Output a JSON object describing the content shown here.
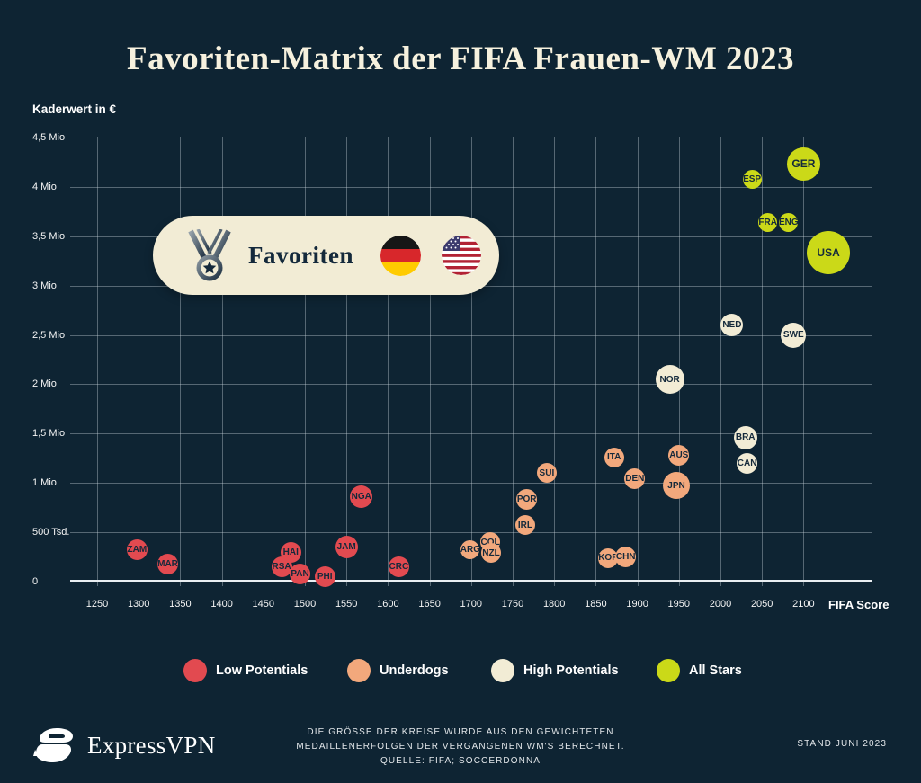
{
  "title": "Favoriten-Matrix der FIFA Frauen-WM 2023",
  "y_axis_title": "Kaderwert in €",
  "x_axis_title": "FIFA Score",
  "callout": {
    "label": "Favoriten",
    "icon": "medal-icon",
    "flags": [
      "germany-flag",
      "usa-flag"
    ]
  },
  "legend": [
    {
      "label": "Low Potentials",
      "color": "#e24a50"
    },
    {
      "label": "Underdogs",
      "color": "#f2a87c"
    },
    {
      "label": "High Potentials",
      "color": "#f2ecd5"
    },
    {
      "label": "All Stars",
      "color": "#cbd918"
    }
  ],
  "footer": {
    "brand": "ExpressVPN",
    "note_line1": "DIE GRÖSSE DER KREISE WURDE AUS DEN GEWICHTETEN",
    "note_line2": "MEDAILLENERFOLGEN DER VERGANGENEN WM'S BERECHNET.",
    "note_line3": "QUELLE: FIFA; SOCCERDONNA",
    "stand": "STAND JUNI 2023"
  },
  "colors": {
    "background": "#0e2433",
    "title": "#f6f1de",
    "grid": "rgba(205,216,224,0.38)",
    "bubble_text": "#14293b",
    "low": "#e24a50",
    "underdog": "#f2a87c",
    "high": "#f2ecd5",
    "allstar": "#cbd918"
  },
  "chart_data": {
    "type": "bubble",
    "title": "Favoriten-Matrix der FIFA Frauen-WM 2023",
    "xlabel": "FIFA Score",
    "ylabel": "Kaderwert in €",
    "xlim": [
      1250,
      2100
    ],
    "x_ticks": [
      1250,
      1300,
      1350,
      1400,
      1450,
      1500,
      1550,
      1600,
      1650,
      1700,
      1750,
      1800,
      1850,
      1900,
      1950,
      2000,
      2050,
      2100
    ],
    "ylim_mio": [
      0,
      4.5
    ],
    "y_ticks": [
      {
        "v": 0,
        "label": "0"
      },
      {
        "v": 0.5,
        "label": "500 Tsd."
      },
      {
        "v": 1,
        "label": "1 Mio"
      },
      {
        "v": 1.5,
        "label": "1,5 Mio"
      },
      {
        "v": 2,
        "label": "2 Mio"
      },
      {
        "v": 2.5,
        "label": "2,5 Mio"
      },
      {
        "v": 3,
        "label": "3 Mio"
      },
      {
        "v": 3.5,
        "label": "3,5 Mio"
      },
      {
        "v": 4,
        "label": "4 Mio"
      },
      {
        "v": 4.5,
        "label": "4,5 Mio"
      }
    ],
    "categories": [
      {
        "id": "low",
        "label": "Low Potentials",
        "color": "#e24a50"
      },
      {
        "id": "underdog",
        "label": "Underdogs",
        "color": "#f2a87c"
      },
      {
        "id": "high",
        "label": "High Potentials",
        "color": "#f2ecd5"
      },
      {
        "id": "allstar",
        "label": "All Stars",
        "color": "#cbd918"
      }
    ],
    "points": [
      {
        "team": "ZAM",
        "fifa_score": 1298,
        "kaderwert_mio": 0.32,
        "r": 11.5,
        "category": "low"
      },
      {
        "team": "MAR",
        "fifa_score": 1335,
        "kaderwert_mio": 0.18,
        "r": 11.5,
        "category": "low"
      },
      {
        "team": "HAI",
        "fifa_score": 1483,
        "kaderwert_mio": 0.3,
        "r": 11.5,
        "category": "low"
      },
      {
        "team": "RSA",
        "fifa_score": 1472,
        "kaderwert_mio": 0.15,
        "r": 11.5,
        "category": "low"
      },
      {
        "team": "PAN",
        "fifa_score": 1494,
        "kaderwert_mio": 0.08,
        "r": 11.5,
        "category": "low"
      },
      {
        "team": "PHI",
        "fifa_score": 1524,
        "kaderwert_mio": 0.055,
        "r": 11.5,
        "category": "low"
      },
      {
        "team": "JAM",
        "fifa_score": 1550,
        "kaderwert_mio": 0.355,
        "r": 12.5,
        "category": "low"
      },
      {
        "team": "NGA",
        "fifa_score": 1568,
        "kaderwert_mio": 0.865,
        "r": 12.5,
        "category": "low"
      },
      {
        "team": "CRC",
        "fifa_score": 1613,
        "kaderwert_mio": 0.155,
        "r": 11.5,
        "category": "low"
      },
      {
        "team": "ARG",
        "fifa_score": 1699,
        "kaderwert_mio": 0.32,
        "r": 10.5,
        "category": "underdog"
      },
      {
        "team": "COL",
        "fifa_score": 1723,
        "kaderwert_mio": 0.4,
        "r": 11,
        "category": "underdog"
      },
      {
        "team": "NZL",
        "fifa_score": 1724,
        "kaderwert_mio": 0.29,
        "r": 11,
        "category": "underdog"
      },
      {
        "team": "IRL",
        "fifa_score": 1765,
        "kaderwert_mio": 0.57,
        "r": 11,
        "category": "underdog"
      },
      {
        "team": "POR",
        "fifa_score": 1767,
        "kaderwert_mio": 0.83,
        "r": 11.5,
        "category": "underdog"
      },
      {
        "team": "SUI",
        "fifa_score": 1791,
        "kaderwert_mio": 1.1,
        "r": 11,
        "category": "underdog"
      },
      {
        "team": "KOR",
        "fifa_score": 1865,
        "kaderwert_mio": 0.24,
        "r": 11,
        "category": "underdog"
      },
      {
        "team": "CHN",
        "fifa_score": 1886,
        "kaderwert_mio": 0.255,
        "r": 11.5,
        "category": "underdog"
      },
      {
        "team": "ITA",
        "fifa_score": 1872,
        "kaderwert_mio": 1.26,
        "r": 11,
        "category": "underdog"
      },
      {
        "team": "DEN",
        "fifa_score": 1897,
        "kaderwert_mio": 1.04,
        "r": 11.5,
        "category": "underdog"
      },
      {
        "team": "AUS",
        "fifa_score": 1950,
        "kaderwert_mio": 1.28,
        "r": 11.5,
        "category": "underdog"
      },
      {
        "team": "JPN",
        "fifa_score": 1947,
        "kaderwert_mio": 0.975,
        "r": 15,
        "category": "underdog"
      },
      {
        "team": "NOR",
        "fifa_score": 1939,
        "kaderwert_mio": 2.05,
        "r": 16,
        "category": "high"
      },
      {
        "team": "BRA",
        "fifa_score": 2030,
        "kaderwert_mio": 1.46,
        "r": 13,
        "category": "high"
      },
      {
        "team": "CAN",
        "fifa_score": 2032,
        "kaderwert_mio": 1.2,
        "r": 11.5,
        "category": "high"
      },
      {
        "team": "NED",
        "fifa_score": 2014,
        "kaderwert_mio": 2.6,
        "r": 12.5,
        "category": "high"
      },
      {
        "team": "SWE",
        "fifa_score": 2088,
        "kaderwert_mio": 2.5,
        "r": 14,
        "category": "high"
      },
      {
        "team": "ESP",
        "fifa_score": 2038,
        "kaderwert_mio": 4.08,
        "r": 10.5,
        "category": "allstar"
      },
      {
        "team": "FRA",
        "fifa_score": 2057,
        "kaderwert_mio": 3.64,
        "r": 10.5,
        "category": "allstar"
      },
      {
        "team": "ENG",
        "fifa_score": 2082,
        "kaderwert_mio": 3.64,
        "r": 10.5,
        "category": "allstar"
      },
      {
        "team": "GER",
        "fifa_score": 2100,
        "kaderwert_mio": 4.235,
        "r": 18.5,
        "category": "allstar"
      },
      {
        "team": "USA",
        "fifa_score": 2130,
        "kaderwert_mio": 3.335,
        "r": 24,
        "category": "allstar"
      }
    ]
  }
}
